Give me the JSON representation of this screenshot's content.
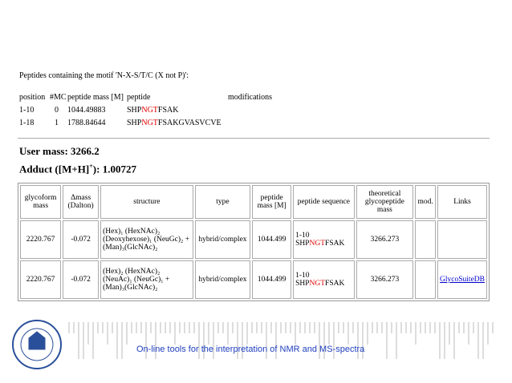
{
  "motif_section": {
    "heading": "Peptides containing the motif 'N-X-S/T/C (X not P)':",
    "columns": [
      "position",
      "#MC",
      "peptide mass [M]",
      "peptide",
      "modifications"
    ],
    "rows": [
      {
        "position": "1-10",
        "mc": "0",
        "mass": "1044.49883",
        "peptide": {
          "pre": "SHP",
          "motif": "NGT",
          "post": "FSAK"
        }
      },
      {
        "position": "1-18",
        "mc": "1",
        "mass": "1788.84644",
        "peptide": {
          "pre": "SHP",
          "motif": "NGT",
          "post": "FSAKGVASVCVE"
        }
      }
    ]
  },
  "user_mass": "User mass: 3266.2",
  "adduct": {
    "pre": "Adduct ([M+H]",
    "sup": "+",
    "post": "): 1.00727"
  },
  "results_table": {
    "headers": [
      "glycoform mass",
      "Δmass (Dalton)",
      "structure",
      "type",
      "peptide mass [M]",
      "peptide sequence",
      "theoretical glycopeptide mass",
      "mod.",
      "Links"
    ],
    "rows": [
      {
        "glycoform_mass": "2220.767",
        "delta_mass": "-0.072",
        "structure": [
          "(Hex)₁ (HexNAc)₂",
          "(Deoxyhexose)₁ (NeuGc)₂ +",
          "(Man)₃(GlcNAc)₂"
        ],
        "type": "hybrid/complex",
        "peptide_mass": "1044.499",
        "range": "1-10",
        "sequence": {
          "pre": "SHP",
          "motif": "NGT",
          "post": "FSAK"
        },
        "theoretical_mass": "3266.273"
      },
      {
        "glycoform_mass": "2220.767",
        "delta_mass": "-0.072",
        "structure": [
          "(Hex)₂ (HexNAc)₂",
          "(NeuAc)₁ (NeuGc)₁ +",
          "(Man)₃(GlcNAc)₂"
        ],
        "type": "hybrid/complex",
        "peptide_mass": "1044.499",
        "range": "1-10",
        "sequence": {
          "pre": "SHP",
          "motif": "NGT",
          "post": "FSAK"
        },
        "theoretical_mass": "3266.273",
        "link": "GlycoSuiteDB"
      }
    ]
  },
  "footer": "On-line tools for the interpretation of NMR and MS-spectra"
}
